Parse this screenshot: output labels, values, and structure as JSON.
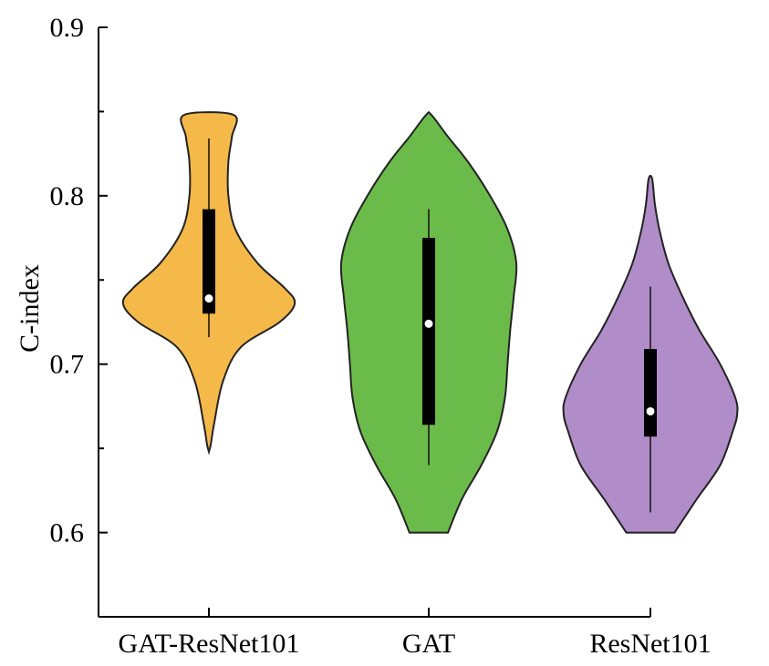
{
  "chart_data": {
    "type": "violin",
    "title": "",
    "xlabel": "",
    "ylabel": "C-index",
    "ylim": [
      0.55,
      0.9
    ],
    "yticks": [
      0.6,
      0.7,
      0.8,
      0.9
    ],
    "ytick_labels": [
      "0.6",
      "0.7",
      "0.8",
      "0.9"
    ],
    "categories": [
      "GAT-ResNet101",
      "GAT",
      "ResNet101"
    ],
    "series": [
      {
        "name": "GAT-ResNet101",
        "color": "#F5B94A",
        "min": 0.648,
        "max": 0.848,
        "whisker_low": 0.716,
        "whisker_high": 0.834,
        "q1": 0.73,
        "median": 0.739,
        "q3": 0.792,
        "density": [
          {
            "y": 0.648,
            "w": 0.0
          },
          {
            "y": 0.652,
            "w": 0.02
          },
          {
            "y": 0.665,
            "w": 0.06
          },
          {
            "y": 0.69,
            "w": 0.16
          },
          {
            "y": 0.71,
            "w": 0.36
          },
          {
            "y": 0.725,
            "w": 0.8
          },
          {
            "y": 0.736,
            "w": 0.97
          },
          {
            "y": 0.745,
            "w": 0.86
          },
          {
            "y": 0.76,
            "w": 0.55
          },
          {
            "y": 0.78,
            "w": 0.3
          },
          {
            "y": 0.8,
            "w": 0.22
          },
          {
            "y": 0.82,
            "w": 0.22
          },
          {
            "y": 0.835,
            "w": 0.26
          },
          {
            "y": 0.848,
            "w": 0.28
          }
        ]
      },
      {
        "name": "GAT",
        "color": "#6BBB4A",
        "min": 0.6,
        "max": 0.848,
        "whisker_low": 0.64,
        "whisker_high": 0.792,
        "q1": 0.664,
        "median": 0.724,
        "q3": 0.775,
        "density": [
          {
            "y": 0.6,
            "w": 0.22
          },
          {
            "y": 0.62,
            "w": 0.38
          },
          {
            "y": 0.64,
            "w": 0.6
          },
          {
            "y": 0.66,
            "w": 0.78
          },
          {
            "y": 0.68,
            "w": 0.87
          },
          {
            "y": 0.7,
            "w": 0.9
          },
          {
            "y": 0.72,
            "w": 0.93
          },
          {
            "y": 0.74,
            "w": 0.97
          },
          {
            "y": 0.76,
            "w": 1.0
          },
          {
            "y": 0.78,
            "w": 0.9
          },
          {
            "y": 0.8,
            "w": 0.7
          },
          {
            "y": 0.82,
            "w": 0.45
          },
          {
            "y": 0.835,
            "w": 0.22
          },
          {
            "y": 0.848,
            "w": 0.03
          }
        ]
      },
      {
        "name": "ResNet101",
        "color": "#B08CC8",
        "min": 0.6,
        "max": 0.81,
        "whisker_low": 0.612,
        "whisker_high": 0.746,
        "q1": 0.657,
        "median": 0.672,
        "q3": 0.709,
        "density": [
          {
            "y": 0.6,
            "w": 0.27
          },
          {
            "y": 0.62,
            "w": 0.52
          },
          {
            "y": 0.64,
            "w": 0.78
          },
          {
            "y": 0.66,
            "w": 0.92
          },
          {
            "y": 0.67,
            "w": 0.97
          },
          {
            "y": 0.68,
            "w": 0.95
          },
          {
            "y": 0.7,
            "w": 0.78
          },
          {
            "y": 0.72,
            "w": 0.55
          },
          {
            "y": 0.74,
            "w": 0.36
          },
          {
            "y": 0.76,
            "w": 0.2
          },
          {
            "y": 0.78,
            "w": 0.1
          },
          {
            "y": 0.795,
            "w": 0.05
          },
          {
            "y": 0.81,
            "w": 0.02
          }
        ]
      }
    ]
  }
}
